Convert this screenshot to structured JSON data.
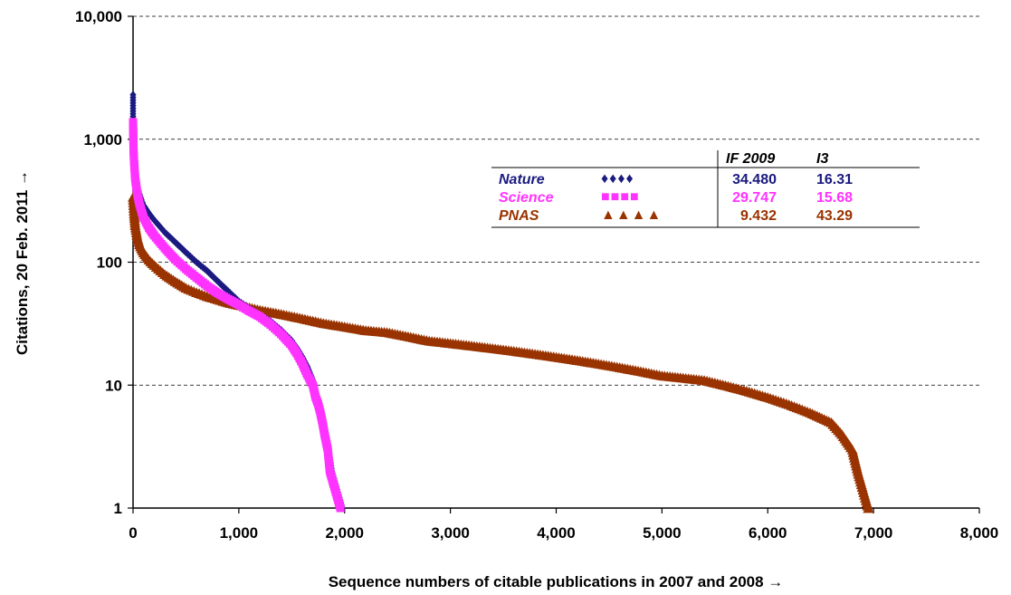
{
  "chart_data": {
    "type": "scatter",
    "xlabel": "Sequence numbers of citable publications in 2007 and 2008 →",
    "ylabel": "Citations, 20 Feb. 2011 →",
    "xlim": [
      0,
      8000
    ],
    "ylim": [
      1,
      10000
    ],
    "yscale": "log",
    "x_ticks": [
      0,
      1000,
      2000,
      3000,
      4000,
      5000,
      6000,
      7000,
      8000
    ],
    "x_tick_labels": [
      "0",
      "1,000",
      "2,000",
      "3,000",
      "4,000",
      "5,000",
      "6,000",
      "7,000",
      "8,000"
    ],
    "y_ticks": [
      1,
      10,
      100,
      1000,
      10000
    ],
    "y_tick_labels": [
      "1",
      "10",
      "100",
      "1,000",
      "10,000"
    ],
    "grid": "horizontal dashed",
    "legend": {
      "placement": "center-right",
      "header": [
        "IF 2009",
        "I3"
      ],
      "rows": [
        {
          "name": "Nature",
          "marker": "♦♦♦♦",
          "if2009": "34.480",
          "i3": "16.31",
          "color": "#1a1a80"
        },
        {
          "name": "Science",
          "marker": "■■■■",
          "if2009": "29.747",
          "i3": "15.68",
          "color": "#ff33ff"
        },
        {
          "name": "PNAS",
          "marker": "▲▲▲▲",
          "if2009": "9.432",
          "i3": "43.29",
          "color": "#993300"
        }
      ]
    },
    "series": [
      {
        "name": "Nature",
        "marker": "diamond",
        "color": "#1a1a80",
        "points": [
          [
            0,
            2300
          ],
          [
            0,
            1130
          ],
          [
            5,
            900
          ],
          [
            10,
            720
          ],
          [
            20,
            560
          ],
          [
            40,
            420
          ],
          [
            60,
            360
          ],
          [
            80,
            320
          ],
          [
            100,
            290
          ],
          [
            150,
            250
          ],
          [
            200,
            220
          ],
          [
            300,
            175
          ],
          [
            400,
            145
          ],
          [
            500,
            120
          ],
          [
            600,
            100
          ],
          [
            700,
            85
          ],
          [
            800,
            70
          ],
          [
            900,
            58
          ],
          [
            1000,
            48
          ],
          [
            1100,
            42
          ],
          [
            1200,
            37
          ],
          [
            1300,
            33
          ],
          [
            1400,
            28
          ],
          [
            1500,
            23
          ],
          [
            1550,
            20
          ],
          [
            1600,
            17
          ],
          [
            1650,
            14
          ],
          [
            1700,
            11
          ],
          [
            1725,
            9
          ],
          [
            1750,
            7
          ],
          [
            1775,
            6
          ],
          [
            1800,
            5
          ],
          [
            1820,
            4
          ],
          [
            1850,
            3
          ],
          [
            1880,
            2
          ],
          [
            1980,
            1
          ]
        ]
      },
      {
        "name": "Science",
        "marker": "square",
        "color": "#ff33ff",
        "points": [
          [
            0,
            1380
          ],
          [
            5,
            800
          ],
          [
            10,
            650
          ],
          [
            20,
            480
          ],
          [
            40,
            360
          ],
          [
            60,
            300
          ],
          [
            80,
            260
          ],
          [
            100,
            230
          ],
          [
            150,
            190
          ],
          [
            200,
            165
          ],
          [
            300,
            130
          ],
          [
            400,
            105
          ],
          [
            500,
            88
          ],
          [
            600,
            75
          ],
          [
            700,
            64
          ],
          [
            800,
            56
          ],
          [
            900,
            50
          ],
          [
            1000,
            45
          ],
          [
            1100,
            40
          ],
          [
            1200,
            36
          ],
          [
            1300,
            31
          ],
          [
            1400,
            26
          ],
          [
            1500,
            21
          ],
          [
            1550,
            18
          ],
          [
            1600,
            15
          ],
          [
            1650,
            12
          ],
          [
            1700,
            10
          ],
          [
            1725,
            8
          ],
          [
            1750,
            7
          ],
          [
            1770,
            6
          ],
          [
            1790,
            5
          ],
          [
            1810,
            4
          ],
          [
            1840,
            3
          ],
          [
            1860,
            2
          ],
          [
            1960,
            1
          ]
        ]
      },
      {
        "name": "PNAS",
        "marker": "triangle",
        "color": "#993300",
        "points": [
          [
            0,
            340
          ],
          [
            10,
            250
          ],
          [
            20,
            200
          ],
          [
            40,
            160
          ],
          [
            60,
            140
          ],
          [
            100,
            120
          ],
          [
            150,
            105
          ],
          [
            200,
            95
          ],
          [
            300,
            80
          ],
          [
            400,
            70
          ],
          [
            500,
            62
          ],
          [
            600,
            57
          ],
          [
            700,
            53
          ],
          [
            800,
            50
          ],
          [
            900,
            47
          ],
          [
            1000,
            45
          ],
          [
            1200,
            41
          ],
          [
            1400,
            38
          ],
          [
            1600,
            35
          ],
          [
            1800,
            32
          ],
          [
            2000,
            30
          ],
          [
            2200,
            28
          ],
          [
            2400,
            27
          ],
          [
            2600,
            25
          ],
          [
            2800,
            23
          ],
          [
            3000,
            22
          ],
          [
            3200,
            21
          ],
          [
            3400,
            20
          ],
          [
            3600,
            19
          ],
          [
            3800,
            18
          ],
          [
            4000,
            17
          ],
          [
            4200,
            16
          ],
          [
            4400,
            15
          ],
          [
            4600,
            14
          ],
          [
            4800,
            13
          ],
          [
            5000,
            12
          ],
          [
            5200,
            11.5
          ],
          [
            5400,
            11
          ],
          [
            5600,
            10
          ],
          [
            5800,
            9
          ],
          [
            6000,
            8
          ],
          [
            6200,
            7
          ],
          [
            6400,
            6
          ],
          [
            6600,
            5
          ],
          [
            6700,
            4
          ],
          [
            6800,
            3
          ],
          [
            6850,
            2
          ],
          [
            6950,
            1
          ]
        ]
      }
    ]
  }
}
